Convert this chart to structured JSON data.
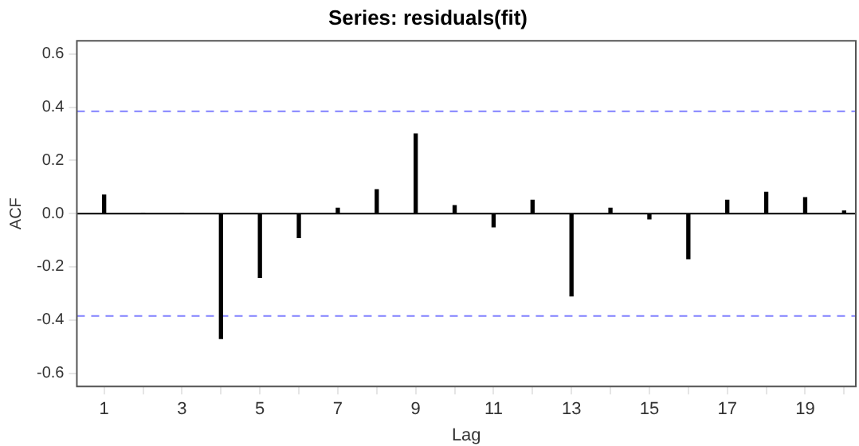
{
  "chart_data": {
    "type": "bar",
    "title": "Series: residuals(fit)",
    "xlabel": "Lag",
    "ylabel": "ACF",
    "x": [
      1,
      2,
      3,
      4,
      5,
      6,
      7,
      8,
      9,
      10,
      11,
      12,
      13,
      14,
      15,
      16,
      17,
      18,
      19,
      20
    ],
    "values": [
      0.07,
      0.0,
      0.0,
      -0.47,
      -0.24,
      -0.09,
      0.02,
      0.09,
      0.3,
      0.03,
      -0.05,
      0.05,
      -0.31,
      0.02,
      -0.02,
      -0.17,
      0.05,
      0.08,
      0.06,
      0.01
    ],
    "color": "#000000",
    "xlim": [
      0.3,
      20.3
    ],
    "xticks": [
      1,
      {
        "value": 2,
        "label": null
      },
      3,
      {
        "value": 4,
        "label": null
      },
      5,
      {
        "value": 6,
        "label": null
      },
      7,
      {
        "value": 8,
        "label": null
      },
      9,
      {
        "value": 10,
        "label": null
      },
      11,
      {
        "value": 12,
        "label": null
      },
      13,
      {
        "value": 14,
        "label": null
      },
      15,
      {
        "value": 16,
        "label": null
      },
      17,
      {
        "value": 18,
        "label": null
      },
      19,
      {
        "value": 20,
        "label": null
      }
    ],
    "ylim": [
      -0.65,
      0.65
    ],
    "yticks": [
      -0.6,
      -0.4,
      -0.2,
      {
        "value": 0,
        "label": "0.0"
      },
      0.2,
      0.4,
      0.6
    ],
    "ref_lines": [
      {
        "axis": "y",
        "value": 0,
        "color": "#000000",
        "line_style": "solid"
      },
      {
        "axis": "y",
        "value": 0.385,
        "color": "#8080ff",
        "line_style": "dashed"
      },
      {
        "axis": "y",
        "value": -0.385,
        "color": "#8080ff",
        "line_style": "dashed"
      }
    ],
    "grid": false,
    "legend": false
  }
}
